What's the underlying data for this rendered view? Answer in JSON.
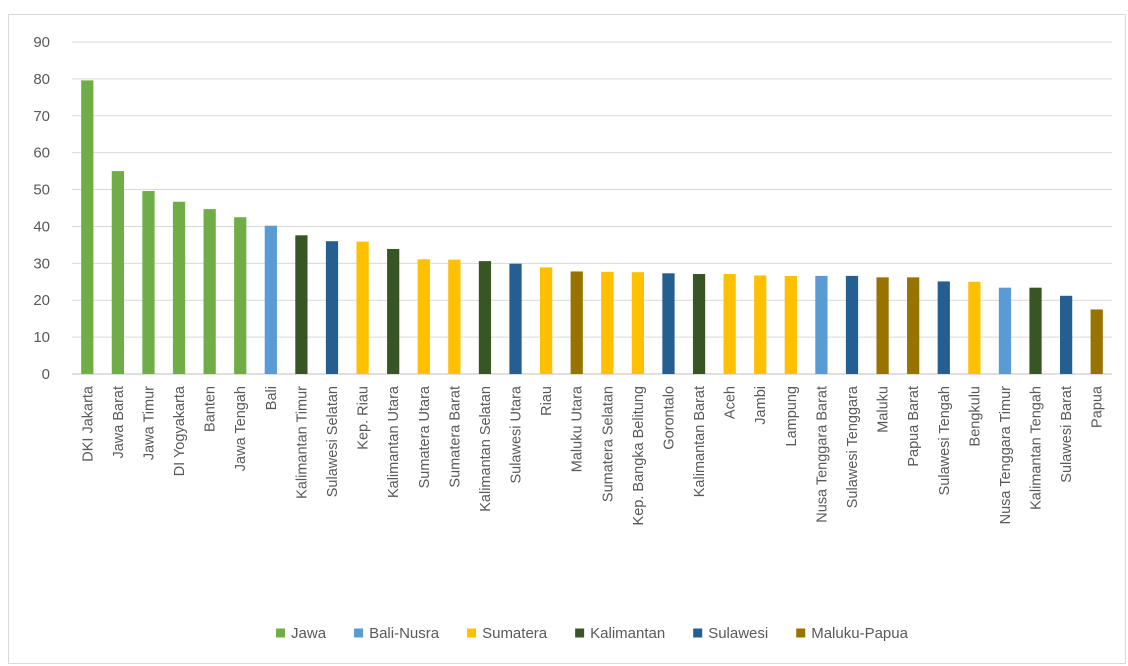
{
  "chart_data": {
    "type": "bar",
    "title": "",
    "xlabel": "",
    "ylabel": "",
    "ylim": [
      0,
      90
    ],
    "yticks": [
      0,
      10,
      20,
      30,
      40,
      50,
      60,
      70,
      80,
      90
    ],
    "grid": true,
    "legend_position": "bottom",
    "groups": [
      {
        "name": "Jawa",
        "color": "#70ad47"
      },
      {
        "name": "Bali-Nusra",
        "color": "#5b9bd5"
      },
      {
        "name": "Sumatera",
        "color": "#ffc000"
      },
      {
        "name": "Kalimantan",
        "color": "#375623"
      },
      {
        "name": "Sulawesi",
        "color": "#255e91"
      },
      {
        "name": "Maluku-Papua",
        "color": "#997300"
      }
    ],
    "bars": [
      {
        "label": "DKI Jakarta",
        "value": 79.6,
        "group": "Jawa"
      },
      {
        "label": "Jawa Barat",
        "value": 55.0,
        "group": "Jawa"
      },
      {
        "label": "Jawa Timur",
        "value": 49.6,
        "group": "Jawa"
      },
      {
        "label": "DI Yogyakarta",
        "value": 46.7,
        "group": "Jawa"
      },
      {
        "label": "Banten",
        "value": 44.7,
        "group": "Jawa"
      },
      {
        "label": "Jawa Tengah",
        "value": 42.5,
        "group": "Jawa"
      },
      {
        "label": "Bali",
        "value": 40.2,
        "group": "Bali-Nusra"
      },
      {
        "label": "Kalimantan Timur",
        "value": 37.6,
        "group": "Kalimantan"
      },
      {
        "label": "Sulawesi Selatan",
        "value": 36.0,
        "group": "Sulawesi"
      },
      {
        "label": "Kep. Riau",
        "value": 35.9,
        "group": "Sumatera"
      },
      {
        "label": "Kalimantan Utara",
        "value": 33.9,
        "group": "Kalimantan"
      },
      {
        "label": "Sumatera Utara",
        "value": 31.1,
        "group": "Sumatera"
      },
      {
        "label": "Sumatera Barat",
        "value": 31.0,
        "group": "Sumatera"
      },
      {
        "label": "Kalimantan Selatan",
        "value": 30.6,
        "group": "Kalimantan"
      },
      {
        "label": "Sulawesi Utara",
        "value": 29.9,
        "group": "Sulawesi"
      },
      {
        "label": "Riau",
        "value": 28.9,
        "group": "Sumatera"
      },
      {
        "label": "Maluku Utara",
        "value": 27.8,
        "group": "Maluku-Papua"
      },
      {
        "label": "Sumatera Selatan",
        "value": 27.7,
        "group": "Sumatera"
      },
      {
        "label": "Kep. Bangka Belitung",
        "value": 27.6,
        "group": "Sumatera"
      },
      {
        "label": "Gorontalo",
        "value": 27.3,
        "group": "Sulawesi"
      },
      {
        "label": "Kalimantan Barat",
        "value": 27.1,
        "group": "Kalimantan"
      },
      {
        "label": "Aceh",
        "value": 27.1,
        "group": "Sumatera"
      },
      {
        "label": "Jambi",
        "value": 26.7,
        "group": "Sumatera"
      },
      {
        "label": "Lampung",
        "value": 26.6,
        "group": "Sumatera"
      },
      {
        "label": "Nusa Tenggara Barat",
        "value": 26.6,
        "group": "Bali-Nusra"
      },
      {
        "label": "Sulawesi Tenggara",
        "value": 26.6,
        "group": "Sulawesi"
      },
      {
        "label": "Maluku",
        "value": 26.2,
        "group": "Maluku-Papua"
      },
      {
        "label": "Papua Barat",
        "value": 26.2,
        "group": "Maluku-Papua"
      },
      {
        "label": "Sulawesi Tengah",
        "value": 25.1,
        "group": "Sulawesi"
      },
      {
        "label": "Bengkulu",
        "value": 25.0,
        "group": "Sumatera"
      },
      {
        "label": "Nusa Tenggara Timur",
        "value": 23.4,
        "group": "Bali-Nusra"
      },
      {
        "label": "Kalimantan Tengah",
        "value": 23.4,
        "group": "Kalimantan"
      },
      {
        "label": "Sulawesi Barat",
        "value": 21.2,
        "group": "Sulawesi"
      },
      {
        "label": "Papua",
        "value": 17.5,
        "group": "Maluku-Papua"
      }
    ]
  }
}
